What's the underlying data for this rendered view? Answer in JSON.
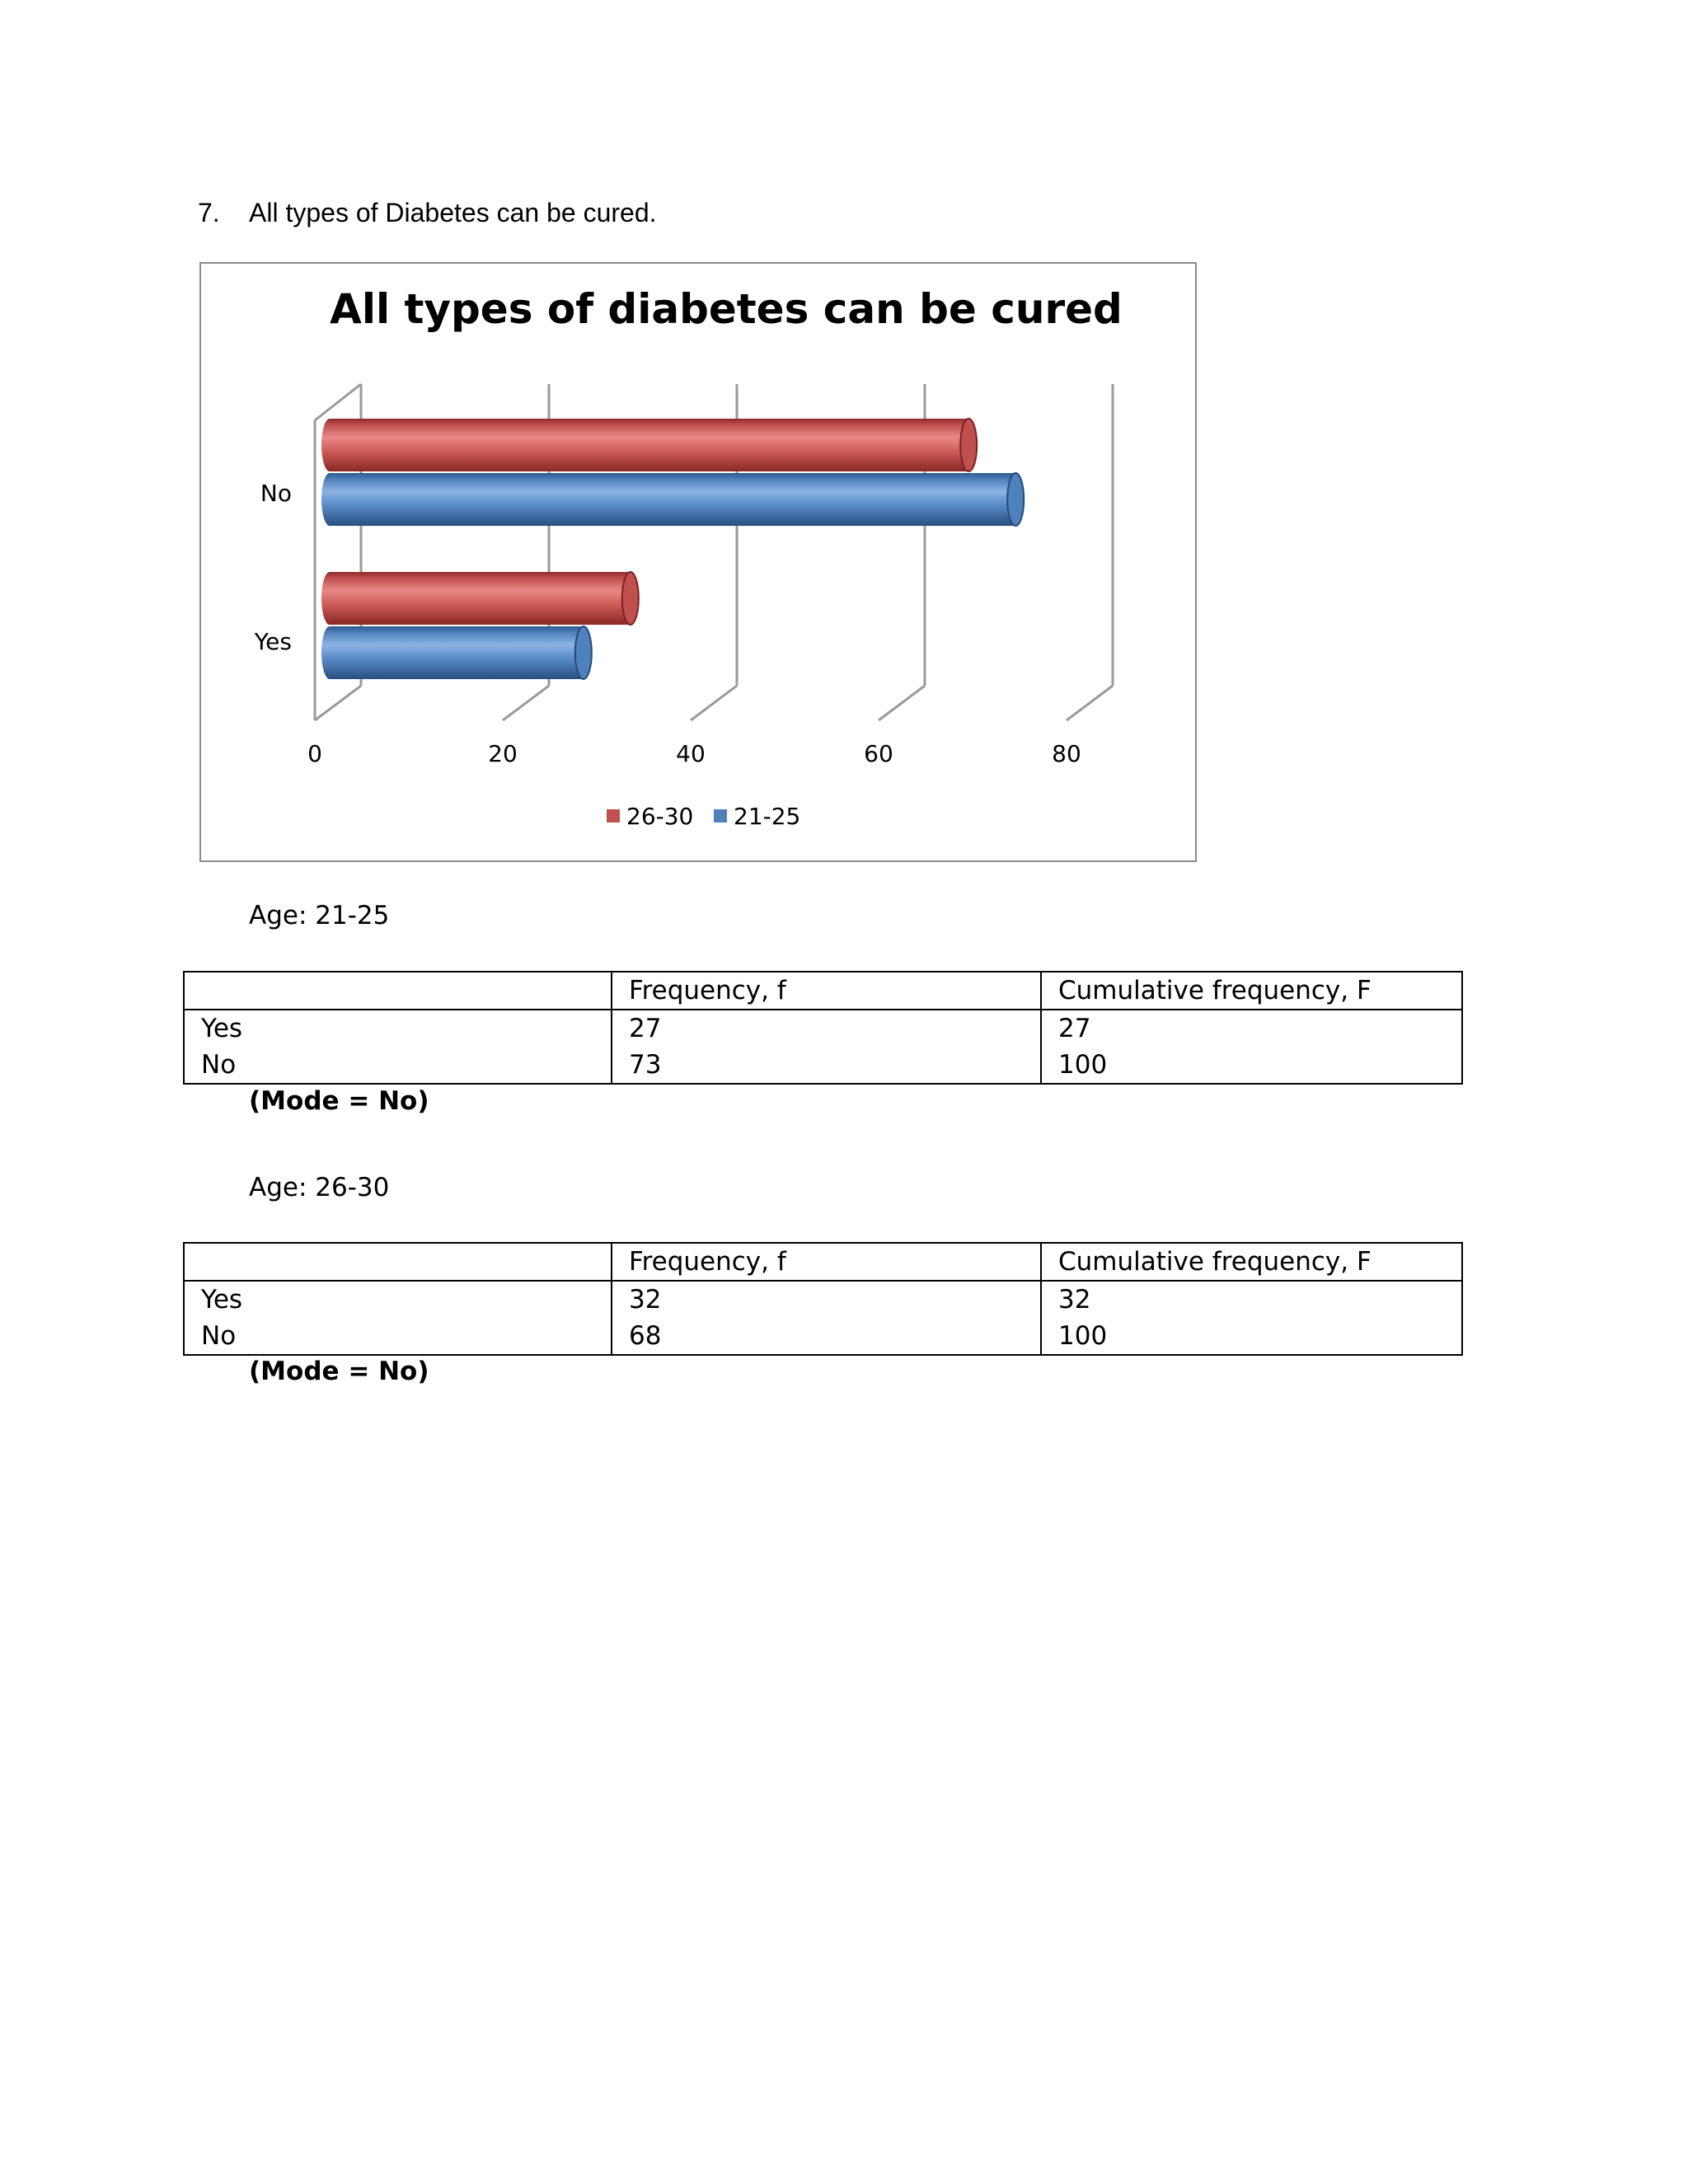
{
  "question": {
    "number": "7.",
    "text": "All types of Diabetes can be cured."
  },
  "chart_data": {
    "type": "bar",
    "orientation": "horizontal",
    "style": "3d-cylinder",
    "title": "All types of diabetes can be cured",
    "categories": [
      "Yes",
      "No"
    ],
    "series": [
      {
        "name": "26-30",
        "values": [
          32,
          68
        ],
        "color": "#c0504d"
      },
      {
        "name": "21-25",
        "values": [
          27,
          73
        ],
        "color": "#4f81bd"
      }
    ],
    "xlim": [
      0,
      80
    ],
    "xticks": [
      "0",
      "20",
      "40",
      "60",
      "80"
    ],
    "grid": true,
    "legend": "bottom",
    "xlabel": "",
    "ylabel": ""
  },
  "tables": [
    {
      "label": "Age: 21-25",
      "headers": [
        "",
        "Frequency, f",
        "Cumulative frequency, F"
      ],
      "rows": [
        [
          "Yes",
          "27",
          "27"
        ],
        [
          "No",
          "73",
          "100"
        ]
      ],
      "mode_note": "(Mode = No)"
    },
    {
      "label": "Age: 26-30",
      "headers": [
        "",
        "Frequency, f",
        "Cumulative frequency, F"
      ],
      "rows": [
        [
          "Yes",
          "32",
          "32"
        ],
        [
          "No",
          "68",
          "100"
        ]
      ],
      "mode_note": "(Mode = No)"
    }
  ]
}
